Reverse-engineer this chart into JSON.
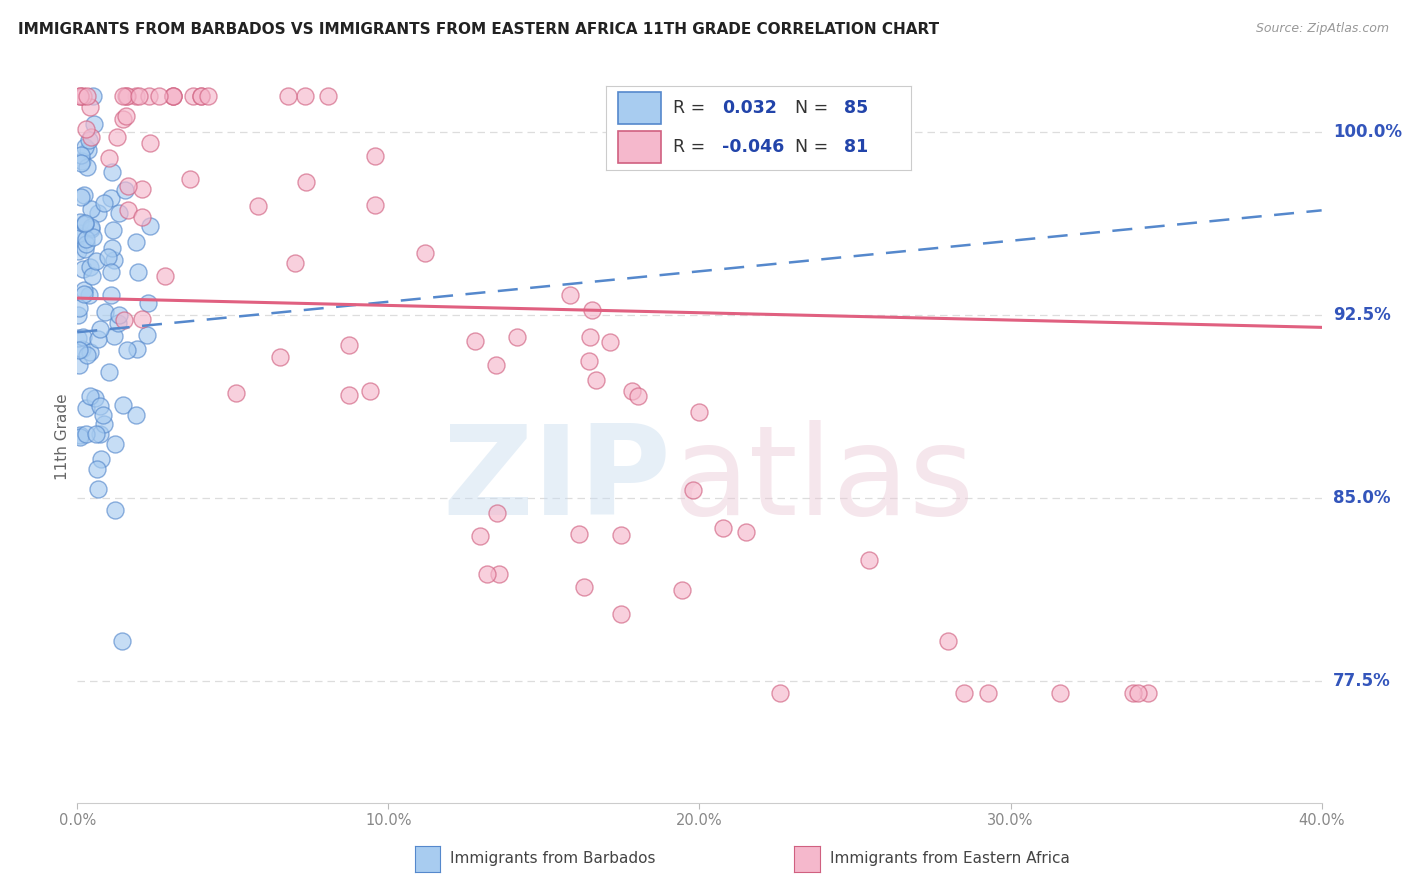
{
  "title": "IMMIGRANTS FROM BARBADOS VS IMMIGRANTS FROM EASTERN AFRICA 11TH GRADE CORRELATION CHART",
  "source": "Source: ZipAtlas.com",
  "ylabel_label": "11th Grade",
  "xmin": 0.0,
  "xmax": 40.0,
  "ymin": 72.5,
  "ymax": 102.5,
  "ytick_values": [
    77.5,
    85.0,
    92.5,
    100.0
  ],
  "xtick_values": [
    0.0,
    10.0,
    20.0,
    30.0,
    40.0
  ],
  "xtick_labels": [
    "0.0%",
    "10.0%",
    "20.0%",
    "30.0%",
    "40.0%"
  ],
  "ytick_labels": [
    "77.5%",
    "85.0%",
    "92.5%",
    "100.0%"
  ],
  "blue_face": "#A8CCF0",
  "blue_edge": "#5588CC",
  "pink_face": "#F5B8CC",
  "pink_edge": "#D06080",
  "blue_line": "#5588CC",
  "pink_line": "#E06080",
  "right_axis_color": "#3355BB",
  "title_color": "#222222",
  "source_color": "#999999",
  "grid_color": "#DDDDDD",
  "tick_color": "#888888",
  "legend_text_color": "#2244AA",
  "bottom_label1": "Immigrants from Barbados",
  "bottom_label2": "Immigrants from Eastern Africa",
  "n_barbados": 85,
  "n_eastern": 81,
  "R_barbados": 0.032,
  "R_eastern": -0.046,
  "blue_trend_x0": 0.0,
  "blue_trend_y0": 91.8,
  "blue_trend_x1": 40.0,
  "blue_trend_y1": 96.8,
  "pink_trend_x0": 0.0,
  "pink_trend_y0": 93.2,
  "pink_trend_x1": 40.0,
  "pink_trend_y1": 92.0
}
